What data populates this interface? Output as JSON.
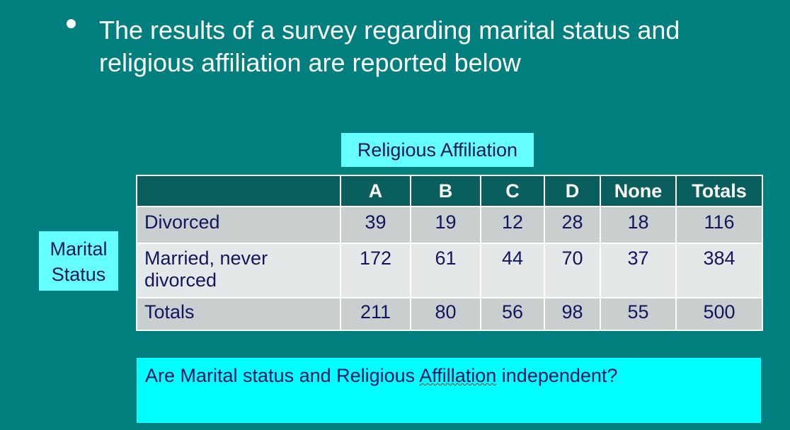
{
  "slide": {
    "bullet_text": "The results of a survey regarding marital status and religious affiliation are reported below",
    "column_group_label": "Religious Affiliation",
    "row_group_label_line1": "Marital",
    "row_group_label_line2": "Status",
    "question_before": "Are Marital status and Religious ",
    "question_misspelled": "Affillation",
    "question_after": " independent?"
  },
  "table": {
    "headers": [
      "",
      "A",
      "B",
      "C",
      "D",
      "None",
      "Totals"
    ],
    "rows": [
      {
        "label": "Divorced",
        "values": [
          "39",
          "19",
          "12",
          "28",
          "18",
          "116"
        ]
      },
      {
        "label": "Married, never divorced",
        "values": [
          "172",
          "61",
          "44",
          "70",
          "37",
          "384"
        ]
      },
      {
        "label": "Totals",
        "values": [
          "211",
          "80",
          "56",
          "98",
          "55",
          "500"
        ]
      }
    ]
  },
  "colors": {
    "background": "#017f7f",
    "header_fill": "#0a5e5e",
    "label_box": "#66ffff",
    "question_box": "#00ffff",
    "text_dark": "#15155f"
  }
}
